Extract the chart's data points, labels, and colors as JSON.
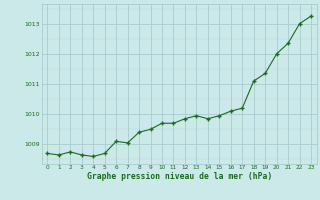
{
  "x": [
    0,
    1,
    2,
    3,
    4,
    5,
    6,
    7,
    8,
    9,
    10,
    11,
    12,
    13,
    14,
    15,
    16,
    17,
    18,
    19,
    20,
    21,
    22,
    23
  ],
  "y": [
    1008.7,
    1008.65,
    1008.75,
    1008.65,
    1008.6,
    1008.7,
    1009.1,
    1009.05,
    1009.4,
    1009.5,
    1009.7,
    1009.7,
    1009.85,
    1009.95,
    1009.85,
    1009.95,
    1010.1,
    1010.2,
    1011.1,
    1011.35,
    1012.0,
    1012.35,
    1013.0,
    1013.25
  ],
  "line_color": "#1a6b1a",
  "marker_color": "#1a6b1a",
  "bg_color": "#cce9e9",
  "grid_color_major": "#aacccc",
  "xlabel": "Graphe pression niveau de la mer (hPa)",
  "xlabel_color": "#1a6b1a",
  "tick_color": "#1a6b1a",
  "ylim": [
    1008.35,
    1013.65
  ],
  "yticks": [
    1009,
    1010,
    1011,
    1012,
    1013
  ],
  "xlim": [
    -0.5,
    23.5
  ],
  "xticks": [
    0,
    1,
    2,
    3,
    4,
    5,
    6,
    7,
    8,
    9,
    10,
    11,
    12,
    13,
    14,
    15,
    16,
    17,
    18,
    19,
    20,
    21,
    22,
    23
  ]
}
